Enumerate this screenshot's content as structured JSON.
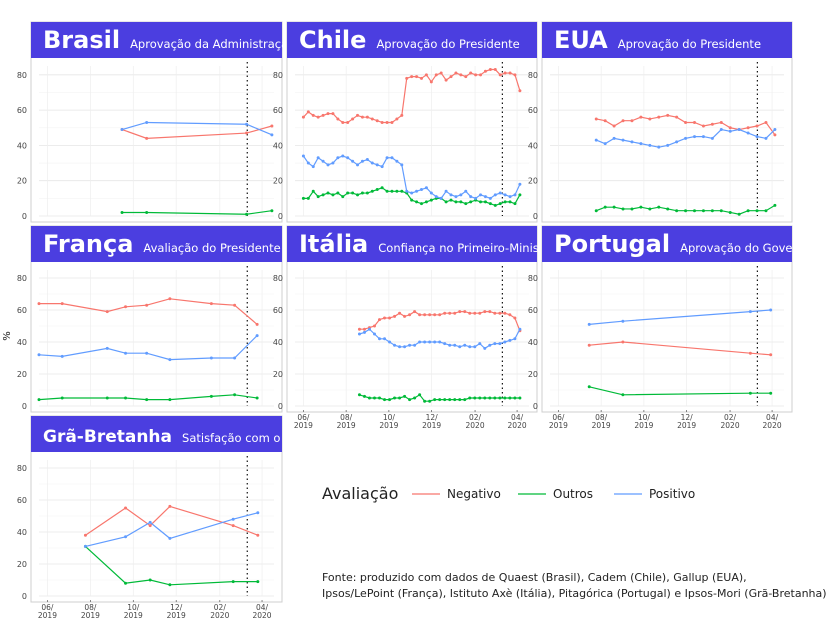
{
  "y_axis_label": "%",
  "legend": {
    "title": "Avaliação",
    "items": [
      {
        "name": "Negativo",
        "color": "#f8766d"
      },
      {
        "name": "Outros",
        "color": "#00ba38"
      },
      {
        "name": "Positivo",
        "color": "#619cff"
      }
    ]
  },
  "footer": {
    "line1": "Fonte: produzido com dados de Quaest (Brasil), Cadem (Chile), Gallup (EUA),",
    "line2": "Ipsos/LePoint (França), Istituto Axè (Itália), Pitagórica (Portugal) e Ipsos-Mori (Grã-Bretanha)"
  },
  "chart_data": [
    {
      "type": "line",
      "country": "Brasil",
      "subtitle": "Aprovação da Administração",
      "ylim": [
        0,
        85
      ],
      "yticks": [
        0,
        20,
        40,
        60,
        80
      ],
      "vline": "2020-03-11",
      "series": [
        {
          "name": "Negativo",
          "points": [
            [
              "2019-09-15",
              49
            ],
            [
              "2019-10-20",
              44
            ],
            [
              "2020-03-10",
              47
            ],
            [
              "2020-04-15",
              51
            ]
          ]
        },
        {
          "name": "Outros",
          "points": [
            [
              "2019-09-15",
              2
            ],
            [
              "2019-10-20",
              2
            ],
            [
              "2020-03-10",
              1
            ],
            [
              "2020-04-15",
              3
            ]
          ]
        },
        {
          "name": "Positivo",
          "points": [
            [
              "2019-09-15",
              49
            ],
            [
              "2019-10-20",
              53
            ],
            [
              "2020-03-10",
              52
            ],
            [
              "2020-04-15",
              46
            ]
          ]
        }
      ]
    },
    {
      "type": "line",
      "country": "Chile",
      "subtitle": "Aprovação do Presidente",
      "ylim": [
        0,
        85
      ],
      "yticks": [
        0,
        20,
        40,
        60,
        80
      ],
      "vline": "2020-03-11",
      "series": [
        {
          "name": "Negativo",
          "values": [
            56,
            59,
            57,
            56,
            57,
            58,
            58,
            55,
            53,
            53,
            55,
            57,
            56,
            56,
            55,
            54,
            53,
            53,
            53,
            55,
            57,
            78,
            79,
            79,
            78,
            80,
            76,
            80,
            81,
            77,
            79,
            81,
            80,
            79,
            81,
            80,
            80,
            82,
            83,
            83,
            80,
            81,
            81,
            80,
            71
          ]
        },
        {
          "name": "Outros",
          "values": [
            10,
            10,
            14,
            11,
            12,
            13,
            12,
            13,
            11,
            13,
            13,
            12,
            13,
            13,
            14,
            15,
            16,
            14,
            14,
            14,
            14,
            13,
            9,
            8,
            7,
            8,
            9,
            10,
            10,
            8,
            9,
            8,
            8,
            7,
            8,
            9,
            8,
            8,
            7,
            6,
            7,
            8,
            8,
            7,
            12
          ]
        },
        {
          "name": "Positivo",
          "values": [
            34,
            30,
            28,
            33,
            31,
            29,
            30,
            33,
            34,
            33,
            31,
            29,
            31,
            32,
            30,
            29,
            28,
            33,
            33,
            31,
            29,
            14,
            13,
            14,
            15,
            16,
            13,
            11,
            10,
            14,
            12,
            11,
            12,
            14,
            11,
            10,
            12,
            11,
            10,
            12,
            13,
            12,
            11,
            12,
            18
          ]
        }
      ]
    },
    {
      "type": "line",
      "country": "EUA",
      "subtitle": "Aprovação do Presidente",
      "ylim": [
        0,
        85
      ],
      "yticks": [
        0,
        20,
        40,
        60,
        80
      ],
      "vline": "2020-03-11",
      "series": [
        {
          "name": "Negativo",
          "values": [
            55,
            54,
            51,
            54,
            54,
            56,
            55,
            56,
            57,
            56,
            53,
            53,
            51,
            52,
            53,
            50,
            49,
            50,
            51,
            53,
            46
          ]
        },
        {
          "name": "Outros",
          "values": [
            3,
            5,
            5,
            4,
            4,
            5,
            4,
            5,
            4,
            3,
            3,
            3,
            3,
            3,
            3,
            2,
            1,
            3,
            3,
            3,
            6
          ]
        },
        {
          "name": "Positivo",
          "values": [
            43,
            41,
            44,
            43,
            42,
            41,
            40,
            39,
            40,
            42,
            44,
            45,
            45,
            44,
            49,
            48,
            49,
            47,
            45,
            44,
            49
          ]
        }
      ]
    },
    {
      "type": "line",
      "country": "França",
      "subtitle": "Avaliação do Presidente",
      "ylim": [
        0,
        85
      ],
      "yticks": [
        0,
        20,
        40,
        60,
        80
      ],
      "vline": "2020-03-11",
      "series": [
        {
          "name": "Negativo",
          "points": [
            [
              "2019-05-20",
              64
            ],
            [
              "2019-06-22",
              64
            ],
            [
              "2019-08-25",
              59
            ],
            [
              "2019-09-20",
              62
            ],
            [
              "2019-10-20",
              63
            ],
            [
              "2019-11-22",
              67
            ],
            [
              "2020-01-20",
              64
            ],
            [
              "2020-02-22",
              63
            ],
            [
              "2020-03-25",
              51
            ]
          ]
        },
        {
          "name": "Outros",
          "points": [
            [
              "2019-05-20",
              4
            ],
            [
              "2019-06-22",
              5
            ],
            [
              "2019-08-25",
              5
            ],
            [
              "2019-09-20",
              5
            ],
            [
              "2019-10-20",
              4
            ],
            [
              "2019-11-22",
              4
            ],
            [
              "2020-01-20",
              6
            ],
            [
              "2020-02-22",
              7
            ],
            [
              "2020-03-25",
              5
            ]
          ]
        },
        {
          "name": "Positivo",
          "points": [
            [
              "2019-05-20",
              32
            ],
            [
              "2019-06-22",
              31
            ],
            [
              "2019-08-25",
              36
            ],
            [
              "2019-09-20",
              33
            ],
            [
              "2019-10-20",
              33
            ],
            [
              "2019-11-22",
              29
            ],
            [
              "2020-01-20",
              30
            ],
            [
              "2020-02-22",
              30
            ],
            [
              "2020-03-25",
              44
            ]
          ]
        }
      ]
    },
    {
      "type": "line",
      "country": "Itália",
      "subtitle": "Confiança no Primeiro-Ministro",
      "ylim": [
        0,
        85
      ],
      "yticks": [
        0,
        20,
        40,
        60,
        80
      ],
      "vline": "2020-03-11",
      "series": [
        {
          "name": "Negativo",
          "values": [
            48,
            48,
            49,
            50,
            54,
            55,
            55,
            56,
            58,
            56,
            57,
            59,
            57,
            57,
            57,
            57,
            57,
            58,
            58,
            58,
            59,
            59,
            58,
            58,
            58,
            59,
            59,
            58,
            58,
            58,
            57,
            55,
            47
          ]
        },
        {
          "name": "Outros",
          "values": [
            7,
            6,
            5,
            5,
            5,
            4,
            4,
            5,
            5,
            6,
            4,
            5,
            7,
            3,
            3,
            4,
            4,
            4,
            4,
            4,
            4,
            4,
            5,
            5,
            5,
            5,
            5,
            5,
            5,
            5,
            5,
            5,
            5
          ]
        },
        {
          "name": "Positivo",
          "values": [
            45,
            46,
            48,
            45,
            42,
            42,
            40,
            38,
            37,
            37,
            38,
            38,
            40,
            40,
            40,
            40,
            40,
            39,
            38,
            38,
            37,
            38,
            37,
            37,
            39,
            36,
            38,
            39,
            39,
            40,
            41,
            42,
            48
          ]
        }
      ]
    },
    {
      "type": "line",
      "country": "Portugal",
      "subtitle": "Aprovação do Governo",
      "ylim": [
        0,
        85
      ],
      "yticks": [
        0,
        20,
        40,
        60,
        80
      ],
      "vline": "2020-03-11",
      "series": [
        {
          "name": "Negativo",
          "points": [
            [
              "2019-07-15",
              38
            ],
            [
              "2019-09-01",
              40
            ],
            [
              "2020-03-01",
              33
            ],
            [
              "2020-03-30",
              32
            ]
          ]
        },
        {
          "name": "Outros",
          "points": [
            [
              "2019-07-15",
              12
            ],
            [
              "2019-09-01",
              7
            ],
            [
              "2020-03-01",
              8
            ],
            [
              "2020-03-30",
              8
            ]
          ]
        },
        {
          "name": "Positivo",
          "points": [
            [
              "2019-07-15",
              51
            ],
            [
              "2019-09-01",
              53
            ],
            [
              "2020-03-01",
              59
            ],
            [
              "2020-03-30",
              60
            ]
          ]
        }
      ]
    },
    {
      "type": "line",
      "country": "Grã-Bretanha",
      "subtitle": "Satisfação com o P.Ministro",
      "ylim": [
        0,
        85
      ],
      "yticks": [
        0,
        20,
        40,
        60,
        80
      ],
      "vline": "2020-03-11",
      "series": [
        {
          "name": "Negativo",
          "points": [
            [
              "2019-07-25",
              38
            ],
            [
              "2019-09-20",
              55
            ],
            [
              "2019-10-25",
              44
            ],
            [
              "2019-11-22",
              56
            ],
            [
              "2020-02-20",
              44
            ],
            [
              "2020-03-26",
              38
            ]
          ]
        },
        {
          "name": "Outros",
          "points": [
            [
              "2019-07-25",
              31
            ],
            [
              "2019-09-20",
              8
            ],
            [
              "2019-10-25",
              10
            ],
            [
              "2019-11-22",
              7
            ],
            [
              "2020-02-20",
              9
            ],
            [
              "2020-03-26",
              9
            ]
          ]
        },
        {
          "name": "Positivo",
          "points": [
            [
              "2019-07-25",
              31
            ],
            [
              "2019-09-20",
              37
            ],
            [
              "2019-10-25",
              46
            ],
            [
              "2019-11-22",
              36
            ],
            [
              "2020-02-20",
              48
            ],
            [
              "2020-03-26",
              52
            ]
          ]
        }
      ]
    }
  ],
  "x_axis": {
    "start": "2019-05-20",
    "end": "2020-04-18",
    "ticks": [
      {
        "date": "2019-06-01",
        "label": "06/",
        "year": "2019"
      },
      {
        "date": "2019-08-01",
        "label": "08/",
        "year": "2019"
      },
      {
        "date": "2019-10-01",
        "label": "10/",
        "year": "2019"
      },
      {
        "date": "2019-12-01",
        "label": "12/",
        "year": "2019"
      },
      {
        "date": "2020-02-01",
        "label": "02/",
        "year": "2020"
      },
      {
        "date": "2020-04-01",
        "label": "04/",
        "year": "2020"
      }
    ]
  }
}
